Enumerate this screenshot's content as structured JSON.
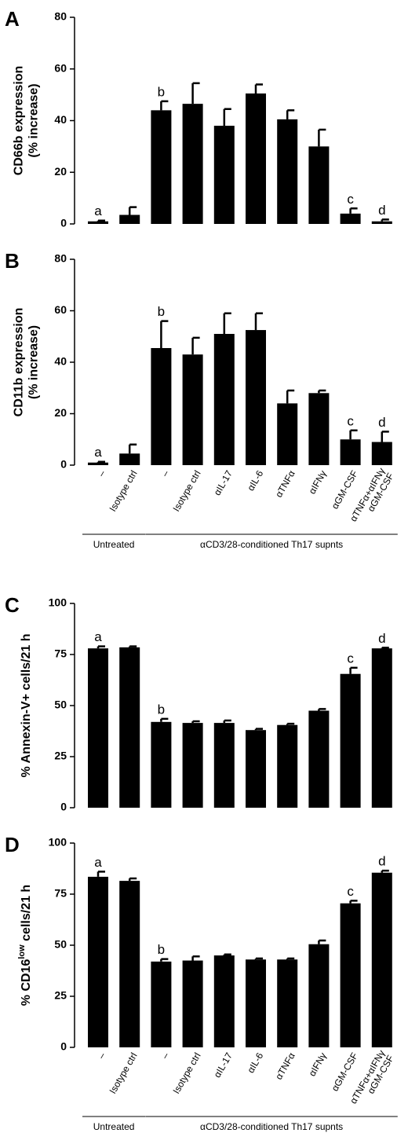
{
  "chart_data": [
    {
      "type": "bar",
      "title": "A",
      "ylabel": {
        "lines": [
          "CD66b expression",
          "(% increase)"
        ]
      },
      "values": [
        1,
        3.5,
        44,
        46.5,
        38,
        50.5,
        40.5,
        30,
        4,
        1
      ],
      "errors": [
        0.3,
        3,
        3.5,
        8,
        6.5,
        3.5,
        3.5,
        6.5,
        2,
        0.7
      ],
      "letters": [
        "a",
        null,
        "b",
        null,
        null,
        null,
        null,
        null,
        "c",
        "d"
      ],
      "color": "#000000",
      "ylim": [
        0,
        80
      ],
      "yticks": [
        0,
        20,
        40,
        60,
        80
      ]
    },
    {
      "type": "bar",
      "title": "B",
      "ylabel": {
        "lines": [
          "CD11b expression",
          "(% increase)"
        ]
      },
      "groups": [
        {
          "label": "Untreated",
          "categories": [
            "–",
            "Isotype ctrl"
          ]
        },
        {
          "label": "αCD3/28-conditioned Th17 supnts",
          "categories": [
            "–",
            "Isotype ctrl",
            "αIL-17",
            "αIL-6",
            "αTNFα",
            "αIFNγ",
            "αGM-CSF",
            "αTNFα+αIFNγ\nαGM-CSF"
          ]
        }
      ],
      "values": [
        1,
        4.5,
        45.5,
        43,
        51,
        52.5,
        24,
        28,
        10,
        9
      ],
      "errors": [
        0.3,
        3.5,
        10.5,
        6.5,
        8,
        6.5,
        5,
        1,
        3.5,
        4
      ],
      "letters": [
        "a",
        null,
        "b",
        null,
        null,
        null,
        null,
        null,
        "c",
        "d"
      ],
      "color": "#000000",
      "ylim": [
        0,
        80
      ],
      "yticks": [
        0,
        20,
        40,
        60,
        80
      ]
    },
    {
      "type": "bar",
      "title": "C",
      "ylabel": {
        "lines": [
          "% Annexin-V+ cells/21 h"
        ]
      },
      "values": [
        78,
        78.5,
        42,
        41.5,
        41.5,
        38,
        40.5,
        47.5,
        65.5,
        78
      ],
      "errors": [
        1,
        0.5,
        1.5,
        0.8,
        1.2,
        0.6,
        0.6,
        0.8,
        3,
        0.3
      ],
      "letters": [
        "a",
        null,
        "b",
        null,
        null,
        null,
        null,
        null,
        "c",
        "d"
      ],
      "color": "#000000",
      "ylim": [
        0,
        100
      ],
      "yticks": [
        0,
        25,
        50,
        75,
        100
      ]
    },
    {
      "type": "bar",
      "title": "D",
      "ylabel": {
        "text": "% CD16",
        "superscript": "low",
        "suffix": " cells/21 h"
      },
      "groups": [
        {
          "label": "Untreated",
          "categories": [
            "–",
            "Isotype ctrl"
          ]
        },
        {
          "label": "αCD3/28-conditioned Th17 supnts",
          "categories": [
            "–",
            "Isotype ctrl",
            "αIL-17",
            "αIL-6",
            "αTNFα",
            "αIFNγ",
            "αGM-CSF",
            "αTNFα+αIFNγ\nαGM-CSF"
          ]
        }
      ],
      "values": [
        83.5,
        81.5,
        42,
        42.5,
        45,
        43,
        43,
        50.5,
        70.5,
        85.5
      ],
      "errors": [
        2.5,
        1.2,
        1.2,
        2,
        0.5,
        0.5,
        0.5,
        1.8,
        1.3,
        1
      ],
      "letters": [
        "a",
        null,
        "b",
        null,
        null,
        null,
        null,
        null,
        "c",
        "d"
      ],
      "color": "#000000",
      "ylim": [
        0,
        100
      ],
      "yticks": [
        0,
        25,
        50,
        75,
        100
      ]
    }
  ]
}
